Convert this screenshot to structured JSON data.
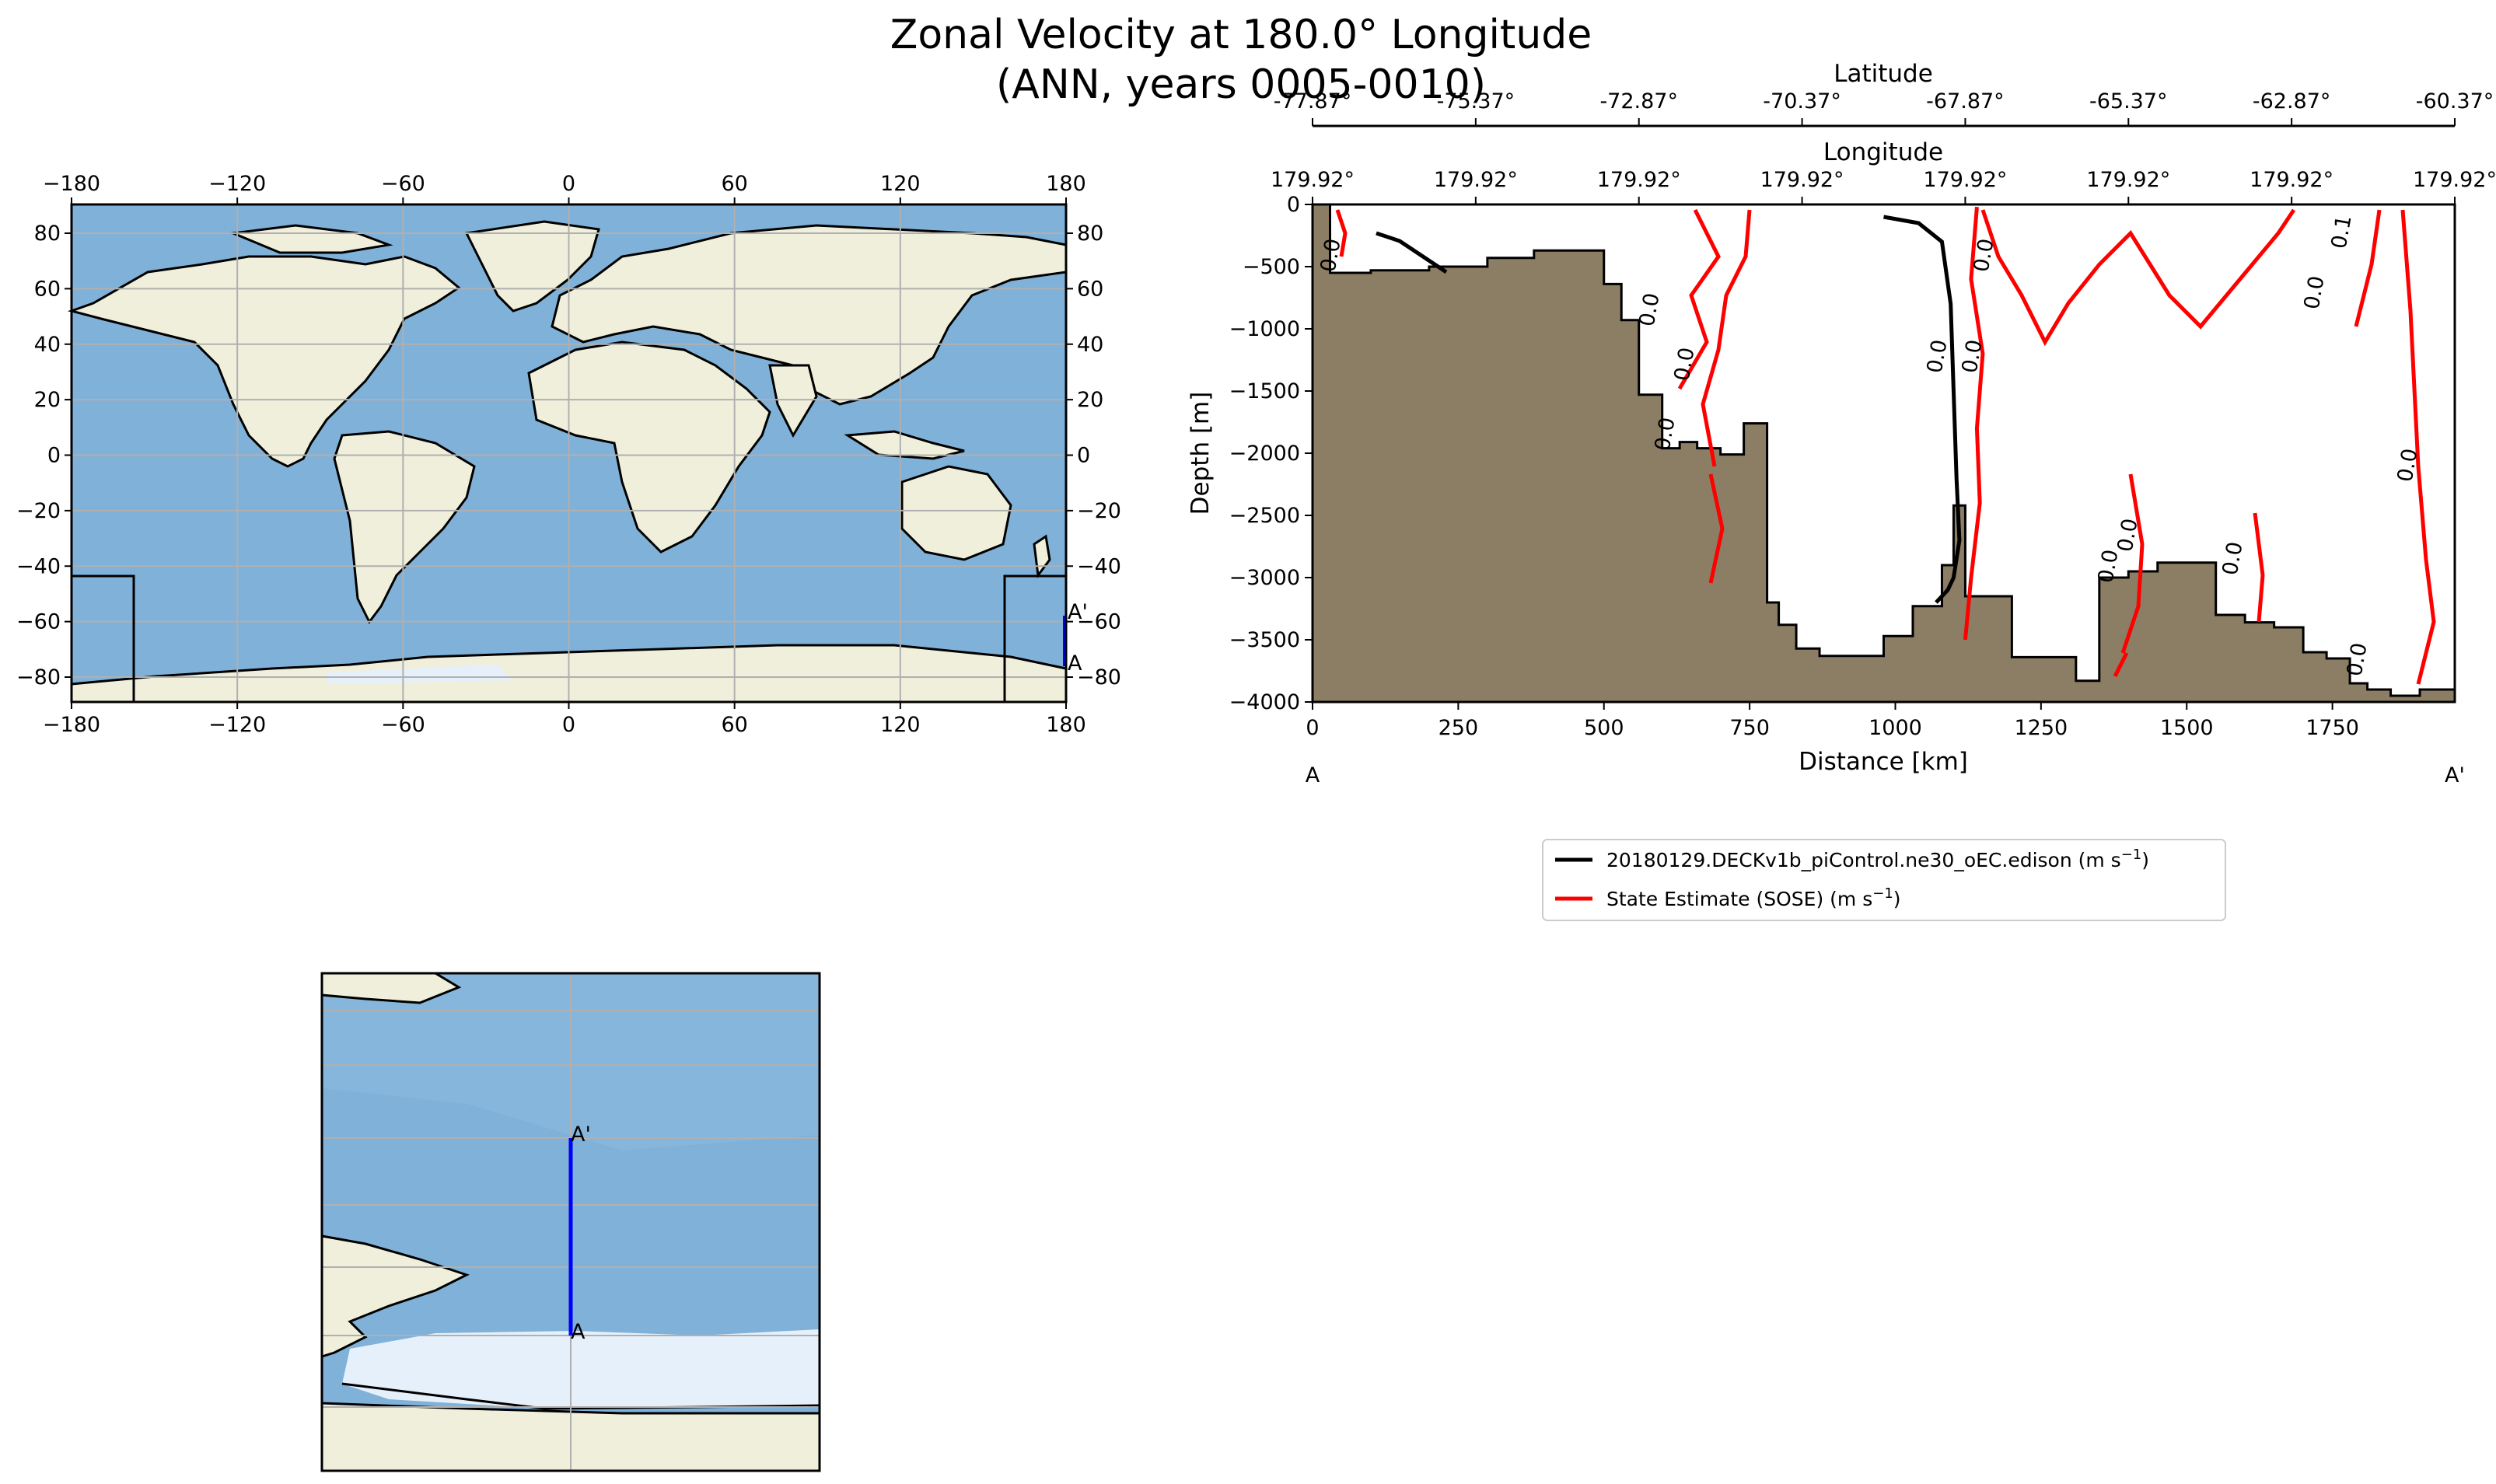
{
  "title": {
    "line1": "Zonal Velocity at 180.0° Longitude",
    "line2": "(ANN, years 0005-0010)"
  },
  "colors": {
    "ocean": "#80b1d8",
    "land": "#efefdb",
    "ice": "#e6f0fa",
    "topography": "#8c7e64",
    "model_contour": "#000000",
    "obs_contour": "#ff0000",
    "transect": "#0000ff",
    "grid": "#b0b0b0"
  },
  "world_map": {
    "x_ticks": [
      "−180",
      "−120",
      "−60",
      "0",
      "60",
      "120",
      "180"
    ],
    "y_ticks": [
      "80",
      "60",
      "40",
      "20",
      "0",
      "−20",
      "−40",
      "−60",
      "−80"
    ],
    "label_a": "A",
    "label_a_prime": "A'"
  },
  "inset_map": {
    "label_a": "A",
    "label_a_prime": "A'"
  },
  "chart_data": {
    "type": "line",
    "xlabel": "Distance [km]",
    "ylabel": "Depth [m]",
    "xlim": [
      0,
      1960
    ],
    "ylim": [
      -4000,
      0
    ],
    "x_ticks": [
      "0",
      "250",
      "500",
      "750",
      "1000",
      "1250",
      "1500",
      "1750"
    ],
    "y_ticks": [
      "0",
      "−500",
      "−1000",
      "−1500",
      "−2000",
      "−2500",
      "−3000",
      "−3500",
      "−4000"
    ],
    "end_label_left": "A",
    "end_label_right": "A'",
    "top_axis_longitude": {
      "label": "Longitude",
      "ticks": [
        "179.92°",
        "179.92°",
        "179.92°",
        "179.92°",
        "179.92°",
        "179.92°",
        "179.92°",
        "179.92°"
      ]
    },
    "top_axis_latitude": {
      "label": "Latitude",
      "ticks": [
        "-77.87°",
        "-75.37°",
        "-72.87°",
        "-70.37°",
        "-67.87°",
        "-65.37°",
        "-62.87°",
        "-60.37°"
      ]
    },
    "contour_labels": [
      "0.0",
      "0.0",
      "0.0",
      "0.0",
      "0.0",
      "0.0",
      "0.0",
      "0.0",
      "0.0",
      "0.0",
      "0.0",
      "0.0",
      "0.0",
      "0.1"
    ],
    "series": [
      {
        "name": "20180129.DECKv1b_piControl.ne30_oEC.edison (m s",
        "unit_sup": "−1",
        "unit_end": ")",
        "color": "#000000",
        "x": [
          980,
          1040,
          1080,
          1095,
          1100,
          1105,
          1110,
          1100,
          1090,
          1070
        ],
        "y": [
          -100,
          -150,
          -300,
          -800,
          -1500,
          -2200,
          -2700,
          -3000,
          -3100,
          -3200
        ]
      },
      {
        "name": "State Estimate (SOSE) (m s",
        "unit_sup": "−1",
        "unit_end": ")",
        "color": "#ff0000",
        "x": [
          1140,
          1130,
          1150,
          1140,
          1145,
          1130,
          1120
        ],
        "y": [
          -20,
          -600,
          -1200,
          -1800,
          -2400,
          -3000,
          -3500
        ]
      }
    ],
    "bathymetry": {
      "x": [
        0,
        30,
        100,
        200,
        300,
        380,
        460,
        500,
        530,
        560,
        600,
        630,
        660,
        700,
        740,
        760,
        780,
        800,
        830,
        870,
        920,
        980,
        1030,
        1080,
        1100,
        1120,
        1150,
        1200,
        1260,
        1310,
        1350,
        1400,
        1450,
        1500,
        1550,
        1600,
        1650,
        1700,
        1740,
        1780,
        1810,
        1850,
        1900,
        1960
      ],
      "depth": [
        0,
        -550,
        -530,
        -500,
        -430,
        -370,
        -370,
        -640,
        -930,
        -1530,
        -1960,
        -1910,
        -1960,
        -2010,
        -1760,
        -1760,
        -3200,
        -3380,
        -3570,
        -3630,
        -3630,
        -3470,
        -3230,
        -2900,
        -2420,
        -3150,
        -3150,
        -3640,
        -3640,
        -3830,
        -3000,
        -2950,
        -2880,
        -2880,
        -3300,
        -3360,
        -3400,
        -3600,
        -3650,
        -3850,
        -3900,
        -3950,
        -3900,
        -4000
      ]
    }
  }
}
